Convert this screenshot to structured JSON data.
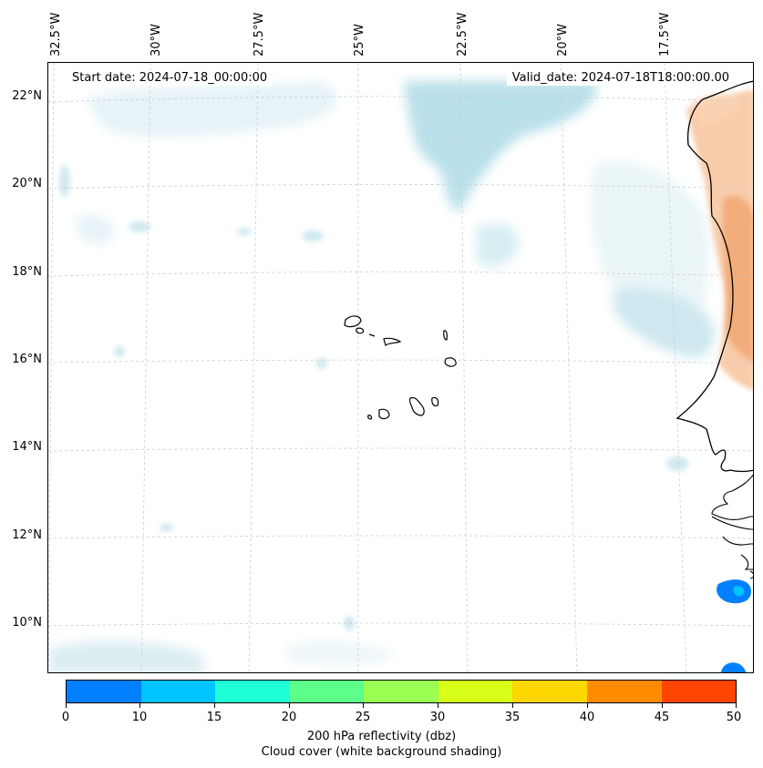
{
  "map": {
    "start_date": "Start date: 2024-07-18_00:00:00",
    "valid_date": "Valid_date: 2024-07-18T18:00:00.00",
    "lon_labels": [
      "32.5°W",
      "30°W",
      "27.5°W",
      "25°W",
      "22.5°W",
      "20°W",
      "17.5°W"
    ],
    "lat_labels": [
      "22°N",
      "20°N",
      "18°N",
      "16°N",
      "14°N",
      "12°N",
      "10°N"
    ]
  },
  "colorbar": {
    "ticks": [
      "0",
      "10",
      "15",
      "20",
      "25",
      "30",
      "35",
      "40",
      "45",
      "50"
    ],
    "colors": [
      "#0080ff",
      "#00c4ff",
      "#1fffd6",
      "#5cff8a",
      "#99ff52",
      "#d8ff1a",
      "#ffd700",
      "#ff8c00",
      "#ff4500"
    ],
    "label_line1": "200 hPa reflectivity (dbz)",
    "label_line2": "Cloud cover (white background shading)"
  }
}
